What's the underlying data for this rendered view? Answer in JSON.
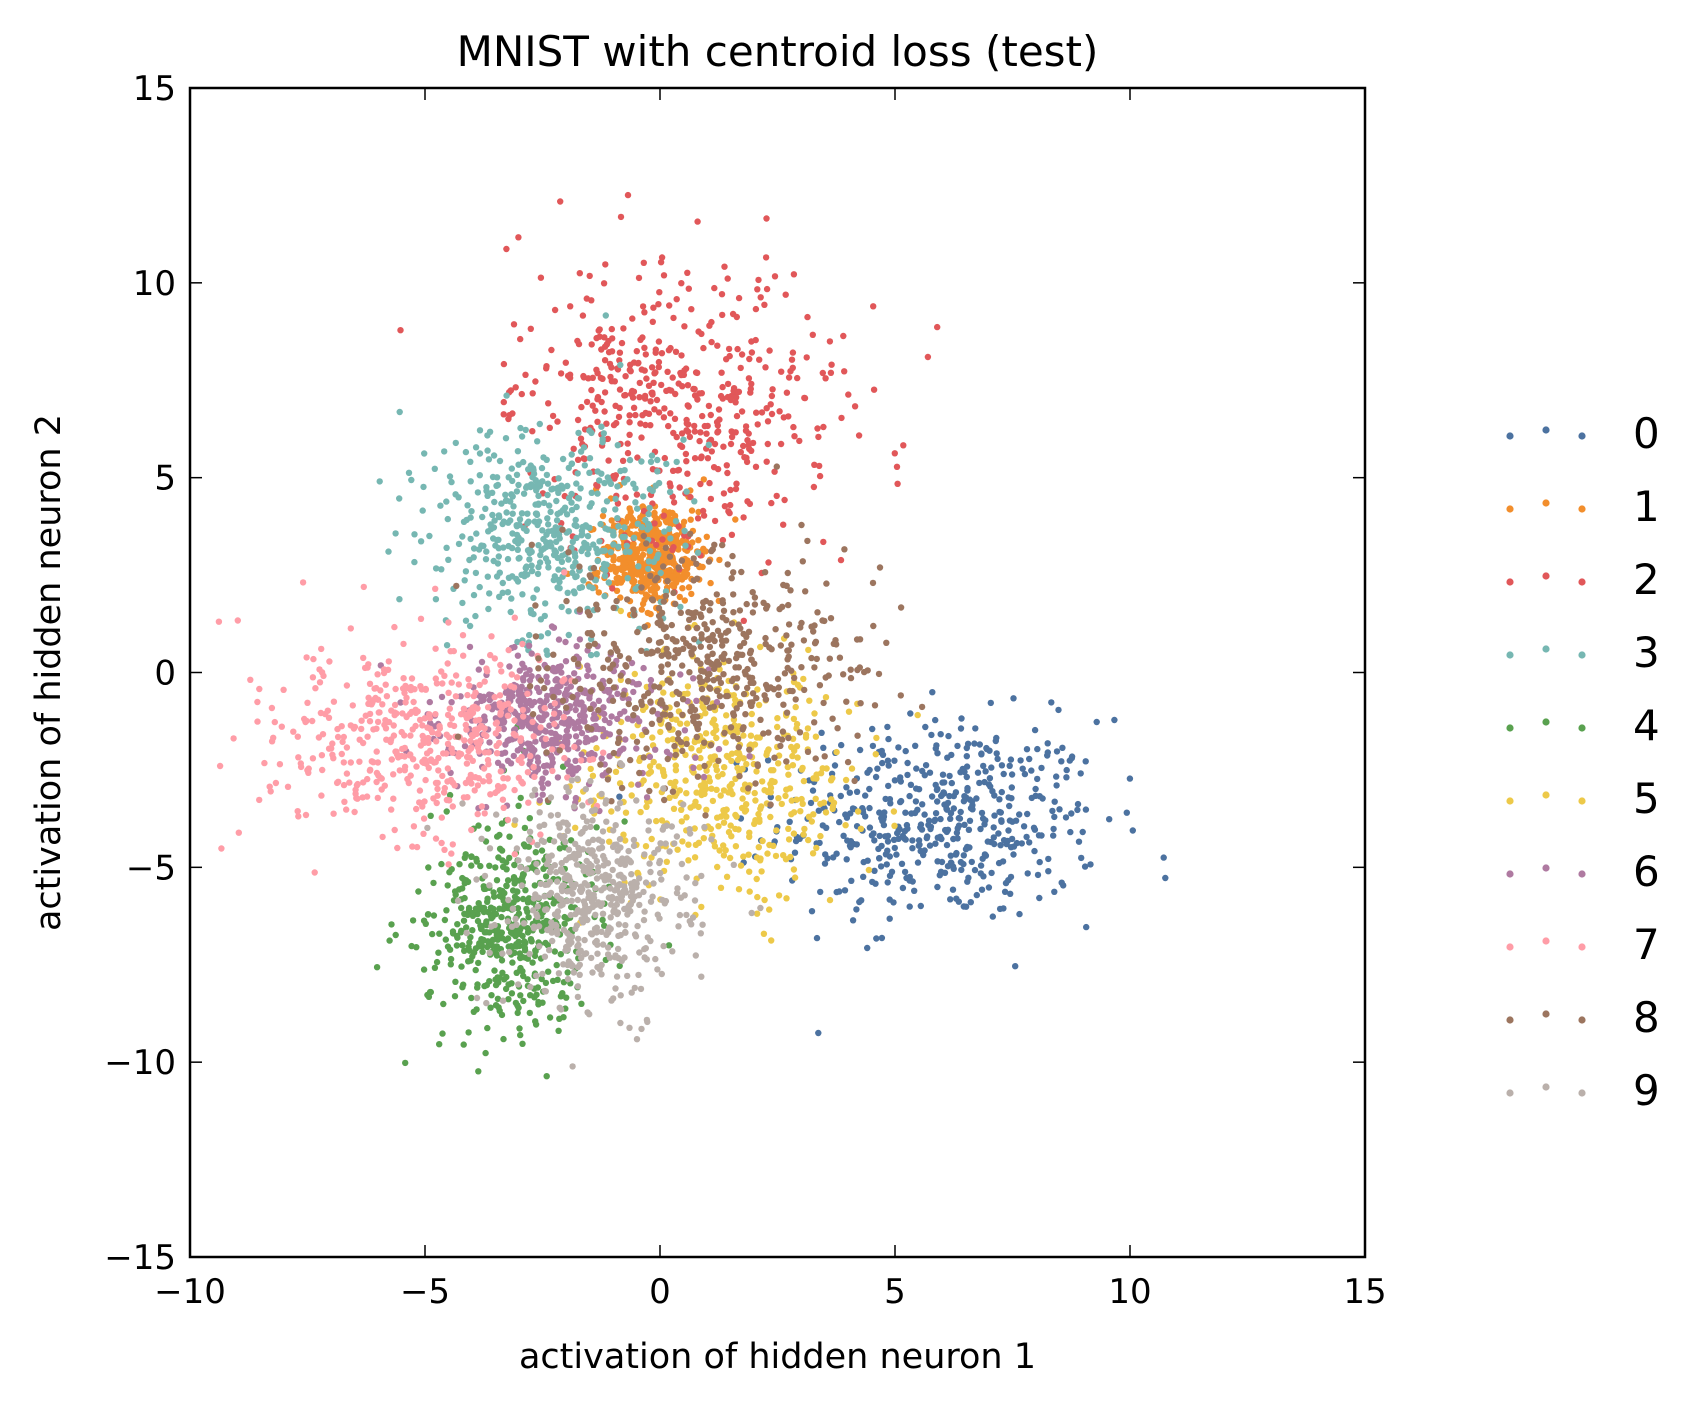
{
  "chart_data": {
    "type": "scatter",
    "title": "MNIST with centroid loss (test)",
    "xlabel": "activation of hidden neuron 1",
    "ylabel": "activation of hidden neuron 2",
    "xlim": [
      -10,
      15
    ],
    "ylim": [
      -15,
      15
    ],
    "xticks": [
      -10,
      -5,
      0,
      5,
      10,
      15
    ],
    "xtick_labels": [
      "−10",
      "−5",
      "0",
      "5",
      "10",
      "15"
    ],
    "yticks": [
      -15,
      -10,
      -5,
      0,
      5,
      10,
      15
    ],
    "ytick_labels": [
      "−15",
      "−10",
      "−5",
      "0",
      "5",
      "10",
      "15"
    ],
    "grid": false,
    "legend_position": "right, outside plot",
    "marker_size_note": "small dots",
    "series": [
      {
        "name": "0",
        "color": "#4c72a0",
        "center": [
          6.0,
          -3.8
        ],
        "spread": [
          1.7,
          1.3
        ],
        "approx_points": 500
      },
      {
        "name": "1",
        "color": "#f28e2c",
        "center": [
          -0.2,
          3.0
        ],
        "spread": [
          0.55,
          0.65
        ],
        "approx_points": 500
      },
      {
        "name": "2",
        "color": "#e15759",
        "center": [
          0.3,
          6.8
        ],
        "spread": [
          1.7,
          1.9
        ],
        "approx_points": 500
      },
      {
        "name": "3",
        "color": "#76b7b2",
        "center": [
          -2.4,
          3.7
        ],
        "spread": [
          1.3,
          1.4
        ],
        "approx_points": 500
      },
      {
        "name": "4",
        "color": "#59a14f",
        "center": [
          -3.2,
          -6.5
        ],
        "spread": [
          0.9,
          1.3
        ],
        "approx_points": 500
      },
      {
        "name": "5",
        "color": "#edc949",
        "center": [
          1.3,
          -2.6
        ],
        "spread": [
          1.4,
          1.5
        ],
        "approx_points": 500
      },
      {
        "name": "6",
        "color": "#af7aa1",
        "center": [
          -2.3,
          -1.2
        ],
        "spread": [
          1.1,
          0.9
        ],
        "approx_points": 500
      },
      {
        "name": "7",
        "color": "#ff9da7",
        "center": [
          -5.0,
          -1.8
        ],
        "spread": [
          1.6,
          1.3
        ],
        "approx_points": 500
      },
      {
        "name": "8",
        "color": "#9c755f",
        "center": [
          0.9,
          0.2
        ],
        "spread": [
          1.6,
          1.5
        ],
        "approx_points": 500
      },
      {
        "name": "9",
        "color": "#bab0ab",
        "center": [
          -1.4,
          -5.7
        ],
        "spread": [
          1.0,
          1.3
        ],
        "approx_points": 500
      }
    ]
  }
}
